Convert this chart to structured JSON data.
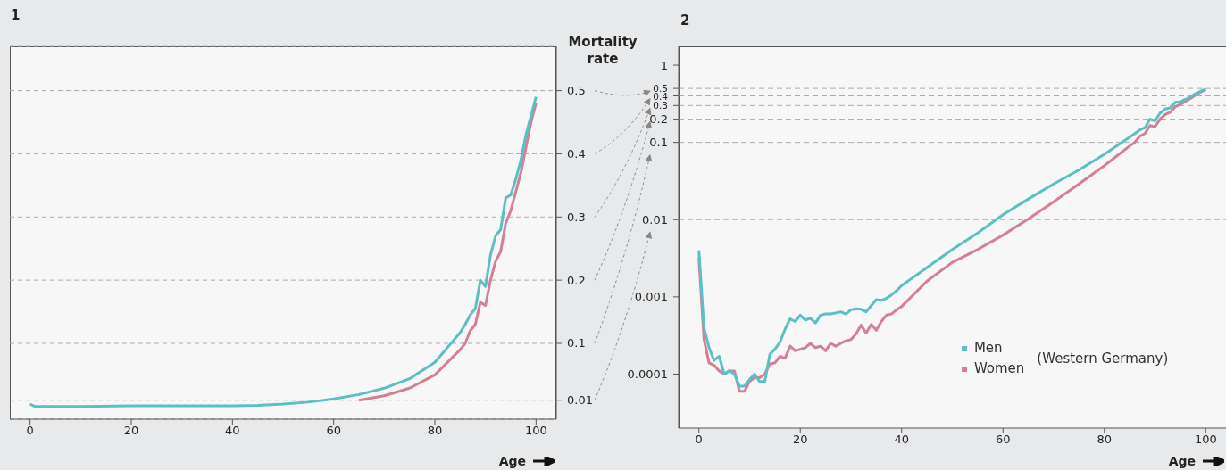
{
  "chart_data": [
    {
      "type": "line",
      "title": "1",
      "xlabel": "Age",
      "ylabel": "Mortality rate",
      "x": [
        0,
        1,
        10,
        20,
        30,
        40,
        45,
        50,
        55,
        60,
        65,
        70,
        75,
        80,
        85,
        86,
        87,
        88,
        89,
        90,
        91,
        92,
        93,
        94,
        95,
        96,
        97,
        98,
        99,
        100
      ],
      "series": [
        {
          "color": "#5bbfc6",
          "values": [
            0.004,
            0,
            0,
            0.001,
            0.001,
            0.001,
            0.002,
            0.004,
            0.007,
            0.012,
            0.019,
            0.029,
            0.044,
            0.07,
            0.117,
            0.13,
            0.145,
            0.155,
            0.2,
            0.19,
            0.24,
            0.27,
            0.28,
            0.33,
            0.335,
            0.36,
            0.39,
            0.43,
            0.46,
            0.49
          ]
        },
        {
          "color": "#d47f96",
          "values": [
            null,
            null,
            null,
            null,
            null,
            null,
            null,
            null,
            null,
            null,
            0.01,
            0.017,
            0.029,
            0.05,
            0.09,
            0.1,
            0.12,
            0.13,
            0.165,
            0.16,
            0.2,
            0.23,
            0.245,
            0.29,
            0.31,
            0.34,
            0.37,
            0.41,
            0.45,
            0.48
          ]
        }
      ],
      "xlim": [
        -4,
        104
      ],
      "xticks": [
        0,
        20,
        40,
        60,
        80,
        100
      ],
      "ylim": [
        -0.02,
        0.57
      ],
      "yticks": [
        0.01,
        0.1,
        0.2,
        0.3,
        0.4,
        0.5
      ],
      "grid": "y",
      "legend": false,
      "marker": "none",
      "line_style": "solid"
    },
    {
      "type": "line",
      "title": "2",
      "xlabel": "Age",
      "x": [
        0,
        1,
        2,
        3,
        4,
        5,
        6,
        7,
        8,
        9,
        10,
        11,
        12,
        13,
        14,
        15,
        16,
        17,
        18,
        19,
        20,
        21,
        22,
        23,
        24,
        25,
        26,
        27,
        28,
        29,
        30,
        31,
        32,
        33,
        34,
        35,
        36,
        37,
        38,
        39,
        40,
        45,
        50,
        55,
        60,
        65,
        70,
        75,
        80,
        85,
        86,
        87,
        88,
        89,
        90,
        91,
        92,
        93,
        94,
        95,
        96,
        97,
        98,
        99,
        100
      ],
      "series": [
        {
          "name": "Men",
          "color": "#5bbfc6",
          "values": [
            0.004,
            0.0004,
            0.00022,
            0.00015,
            0.00017,
            0.0001,
            0.00011,
            0.0001,
            7e-05,
            7e-05,
            8.5e-05,
            0.0001,
            8e-05,
            8e-05,
            0.00018,
            0.00021,
            0.00026,
            0.00038,
            0.00052,
            0.00048,
            0.00058,
            0.0005,
            0.00053,
            0.00046,
            0.00058,
            0.0006,
            0.0006,
            0.00062,
            0.00064,
            0.0006,
            0.00068,
            0.0007,
            0.00069,
            0.00064,
            0.00077,
            0.00092,
            0.0009,
            0.00096,
            0.00106,
            0.0012,
            0.0014,
            0.0024,
            0.0041,
            0.0067,
            0.0116,
            0.0185,
            0.029,
            0.044,
            0.07,
            0.117,
            0.13,
            0.145,
            0.155,
            0.2,
            0.19,
            0.24,
            0.27,
            0.28,
            0.33,
            0.335,
            0.36,
            0.39,
            0.43,
            0.46,
            0.49
          ]
        },
        {
          "name": "Women",
          "color": "#d47f96",
          "values": [
            0.0032,
            0.00028,
            0.00014,
            0.00013,
            0.00011,
            0.0001,
            0.00011,
            0.00011,
            6e-05,
            6e-05,
            8e-05,
            9e-05,
            9e-05,
            0.0001,
            0.000135,
            0.00014,
            0.00017,
            0.00016,
            0.00023,
            0.0002,
            0.00021,
            0.00022,
            0.00025,
            0.00022,
            0.00023,
            0.0002,
            0.00025,
            0.00023,
            0.00025,
            0.00027,
            0.00028,
            0.00033,
            0.00043,
            0.00034,
            0.00044,
            0.00037,
            0.00048,
            0.00058,
            0.0006,
            0.00068,
            0.00075,
            0.0016,
            0.0028,
            0.0041,
            0.0063,
            0.0102,
            0.017,
            0.029,
            0.05,
            0.09,
            0.1,
            0.12,
            0.13,
            0.165,
            0.16,
            0.2,
            0.23,
            0.245,
            0.29,
            0.31,
            0.34,
            0.37,
            0.41,
            0.45,
            0.48
          ]
        }
      ],
      "xlim": [
        -4,
        104
      ],
      "xticks": [
        0,
        20,
        40,
        60,
        80,
        100
      ],
      "log": "y",
      "ylim": [
        2e-05,
        1.75
      ],
      "yticks": [
        0.0001,
        0.001,
        0.01,
        0.1,
        0.2,
        0.3,
        0.4,
        0.5,
        1
      ],
      "ref_lines": [
        {
          "axis": "y",
          "value": 0.01
        },
        {
          "axis": "y",
          "value": 0.1
        },
        {
          "axis": "y",
          "value": 0.2
        },
        {
          "axis": "y",
          "value": 0.3
        },
        {
          "axis": "y",
          "value": 0.4
        },
        {
          "axis": "y",
          "value": 0.5
        }
      ],
      "legend": "right",
      "annotations": [
        "(Western Germany)"
      ],
      "marker": "none",
      "line_style": "solid"
    }
  ]
}
